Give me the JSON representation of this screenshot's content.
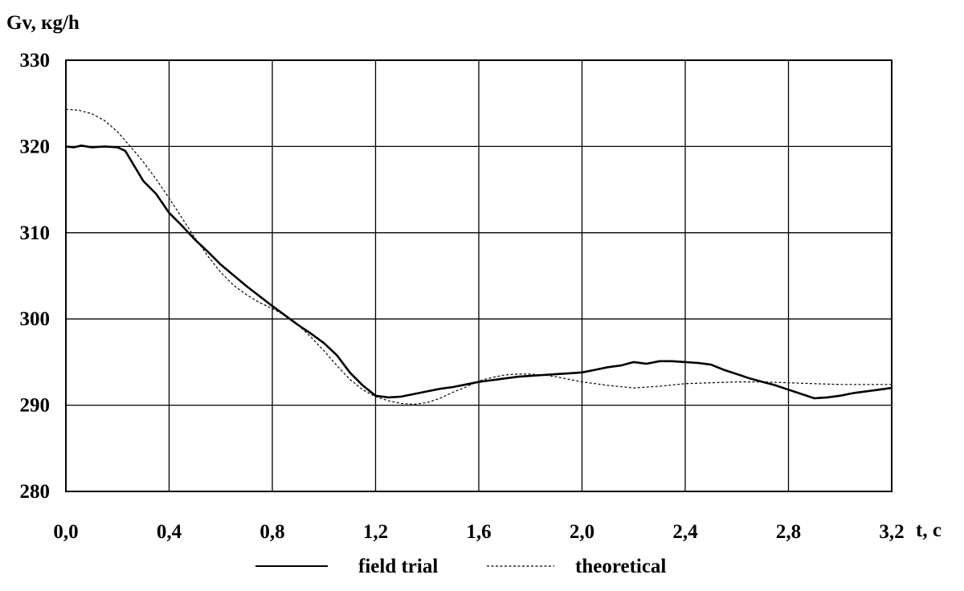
{
  "chart_data": {
    "type": "line",
    "ylabel": "Gv, кg/h",
    "xlabel": "t, c",
    "xlim": [
      0.0,
      3.2
    ],
    "ylim": [
      280,
      330
    ],
    "x_ticks": [
      "0,0",
      "0,4",
      "0,8",
      "1,2",
      "1,6",
      "2,0",
      "2,4",
      "2,8",
      "3,2"
    ],
    "y_ticks": [
      "280",
      "290",
      "300",
      "310",
      "320",
      "330"
    ],
    "grid": true,
    "legend_position": "bottom",
    "series": [
      {
        "name": "field trial",
        "style": "solid",
        "x": [
          0.0,
          0.03,
          0.06,
          0.1,
          0.15,
          0.2,
          0.23,
          0.26,
          0.3,
          0.35,
          0.4,
          0.45,
          0.5,
          0.55,
          0.6,
          0.7,
          0.8,
          0.9,
          0.95,
          1.0,
          1.05,
          1.1,
          1.15,
          1.2,
          1.25,
          1.3,
          1.35,
          1.4,
          1.45,
          1.5,
          1.55,
          1.6,
          1.65,
          1.7,
          1.75,
          1.8,
          1.85,
          1.9,
          1.95,
          2.0,
          2.05,
          2.1,
          2.15,
          2.2,
          2.25,
          2.3,
          2.35,
          2.4,
          2.45,
          2.5,
          2.55,
          2.6,
          2.65,
          2.7,
          2.75,
          2.8,
          2.85,
          2.9,
          2.95,
          3.0,
          3.05,
          3.1,
          3.15,
          3.2
        ],
        "y": [
          320.0,
          319.9,
          320.1,
          319.9,
          320.0,
          319.9,
          319.5,
          318.0,
          316.0,
          314.5,
          312.3,
          310.8,
          309.2,
          307.8,
          306.3,
          303.8,
          301.5,
          299.3,
          298.3,
          297.2,
          295.8,
          293.8,
          292.3,
          291.1,
          290.9,
          291.0,
          291.3,
          291.6,
          291.9,
          292.1,
          292.4,
          292.7,
          292.9,
          293.1,
          293.3,
          293.4,
          293.5,
          293.6,
          293.7,
          293.8,
          294.1,
          294.4,
          294.6,
          295.0,
          294.8,
          295.1,
          295.1,
          295.0,
          294.9,
          294.7,
          294.1,
          293.6,
          293.1,
          292.7,
          292.3,
          291.8,
          291.3,
          290.8,
          290.9,
          291.1,
          291.4,
          291.6,
          291.8,
          292.0
        ]
      },
      {
        "name": "theoretical",
        "style": "dashed",
        "x": [
          0.0,
          0.05,
          0.1,
          0.15,
          0.2,
          0.25,
          0.3,
          0.35,
          0.4,
          0.45,
          0.5,
          0.55,
          0.6,
          0.65,
          0.7,
          0.75,
          0.8,
          0.85,
          0.9,
          0.95,
          1.0,
          1.05,
          1.1,
          1.15,
          1.2,
          1.25,
          1.3,
          1.35,
          1.4,
          1.45,
          1.5,
          1.55,
          1.6,
          1.65,
          1.7,
          1.75,
          1.8,
          1.85,
          1.9,
          1.95,
          2.0,
          2.1,
          2.2,
          2.3,
          2.4,
          2.5,
          2.6,
          2.7,
          2.8,
          2.9,
          3.0,
          3.1,
          3.2
        ],
        "y": [
          324.3,
          324.2,
          323.8,
          323.0,
          321.7,
          320.0,
          318.2,
          316.2,
          314.0,
          311.7,
          309.4,
          307.3,
          305.4,
          303.9,
          302.8,
          301.9,
          301.2,
          300.4,
          299.3,
          297.9,
          296.3,
          294.6,
          293.0,
          291.8,
          291.0,
          290.5,
          290.2,
          290.1,
          290.3,
          290.8,
          291.5,
          292.1,
          292.8,
          293.2,
          293.5,
          293.6,
          293.6,
          293.5,
          293.3,
          293.0,
          292.7,
          292.3,
          292.0,
          292.2,
          292.5,
          292.6,
          292.7,
          292.7,
          292.6,
          292.5,
          292.4,
          292.4,
          292.4
        ]
      }
    ]
  }
}
